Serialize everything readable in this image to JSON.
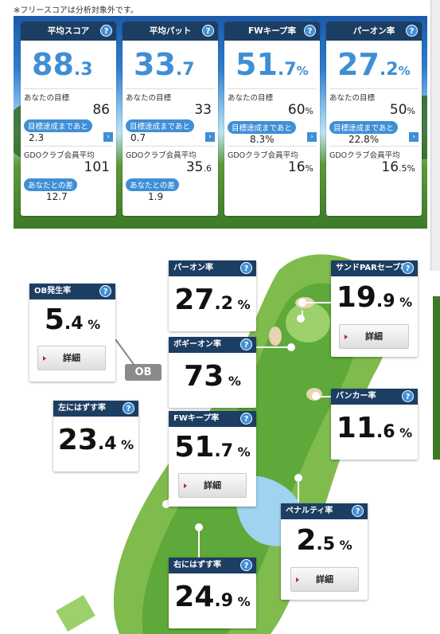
{
  "note": "※フリースコアは分析対象外です。",
  "cards": [
    {
      "title": "平均スコア",
      "int": "88",
      "dec": ".3",
      "unit": "",
      "goal_label": "あなたの目標",
      "goal_value": "86",
      "goal_unit": "",
      "achieve_label": "目標達成まであと",
      "achieve_value": "2.3",
      "gdo_label": "GDOクラブ会員平均",
      "gdo_int": "101",
      "gdo_dec": "",
      "gdo_unit": "",
      "diff_label": "あなたとの差",
      "diff_value": "12.7"
    },
    {
      "title": "平均パット",
      "int": "33",
      "dec": ".7",
      "unit": "",
      "goal_label": "あなたの目標",
      "goal_value": "33",
      "goal_unit": "",
      "achieve_label": "目標達成まであと",
      "achieve_value": "0.7",
      "gdo_label": "GDOクラブ会員平均",
      "gdo_int": "35",
      "gdo_dec": ".6",
      "gdo_unit": "",
      "diff_label": "あなたとの差",
      "diff_value": "1.9"
    },
    {
      "title": "FWキープ率",
      "int": "51",
      "dec": ".7",
      "unit": "%",
      "goal_label": "あなたの目標",
      "goal_value": "60",
      "goal_unit": "%",
      "achieve_label": "目標達成まであと",
      "achieve_value": "8.3%",
      "gdo_label": "GDOクラブ会員平均",
      "gdo_int": "16",
      "gdo_dec": "",
      "gdo_unit": "%",
      "diff_label": "",
      "diff_value": ""
    },
    {
      "title": "パーオン率",
      "int": "27",
      "dec": ".2",
      "unit": "%",
      "goal_label": "あなたの目標",
      "goal_value": "50",
      "goal_unit": "%",
      "achieve_label": "目標達成まであと",
      "achieve_value": "22.8%",
      "gdo_label": "GDOクラブ会員平均",
      "gdo_int": "16",
      "gdo_dec": ".5",
      "gdo_unit": "%",
      "diff_label": "",
      "diff_value": ""
    }
  ],
  "ob_tag": "OB",
  "detail_label": "詳細",
  "help_glyph": "?",
  "arrow_glyph": "›",
  "stats": {
    "ob": {
      "title": "OB発生率",
      "int": "5",
      "dec": ".4",
      "unit": "%"
    },
    "paron": {
      "title": "パーオン率",
      "int": "27",
      "dec": ".2",
      "unit": "%"
    },
    "sandpar": {
      "title": "サンドPARセーブ率",
      "int": "19",
      "dec": ".9",
      "unit": "%"
    },
    "bogeyon": {
      "title": "ボギーオン率",
      "int": "73",
      "dec": "",
      "unit": "%"
    },
    "left": {
      "title": "左にはずす率",
      "int": "23",
      "dec": ".4",
      "unit": "%"
    },
    "fw": {
      "title": "FWキープ率",
      "int": "51",
      "dec": ".7",
      "unit": "%"
    },
    "bunker": {
      "title": "バンカー率",
      "int": "11",
      "dec": ".6",
      "unit": "%"
    },
    "penalty": {
      "title": "ペナルティ率",
      "int": "2",
      "dec": ".5",
      "unit": "%"
    },
    "right": {
      "title": "右にはずす率",
      "int": "24",
      "dec": ".9",
      "unit": "%"
    }
  },
  "colors": {
    "header": "#1d3e63",
    "accent": "#3f8fd6",
    "fairway": "#5fa83a",
    "rough": "#7fbb4d",
    "water": "#9fd3ef",
    "sand": "#e8d4b0"
  }
}
